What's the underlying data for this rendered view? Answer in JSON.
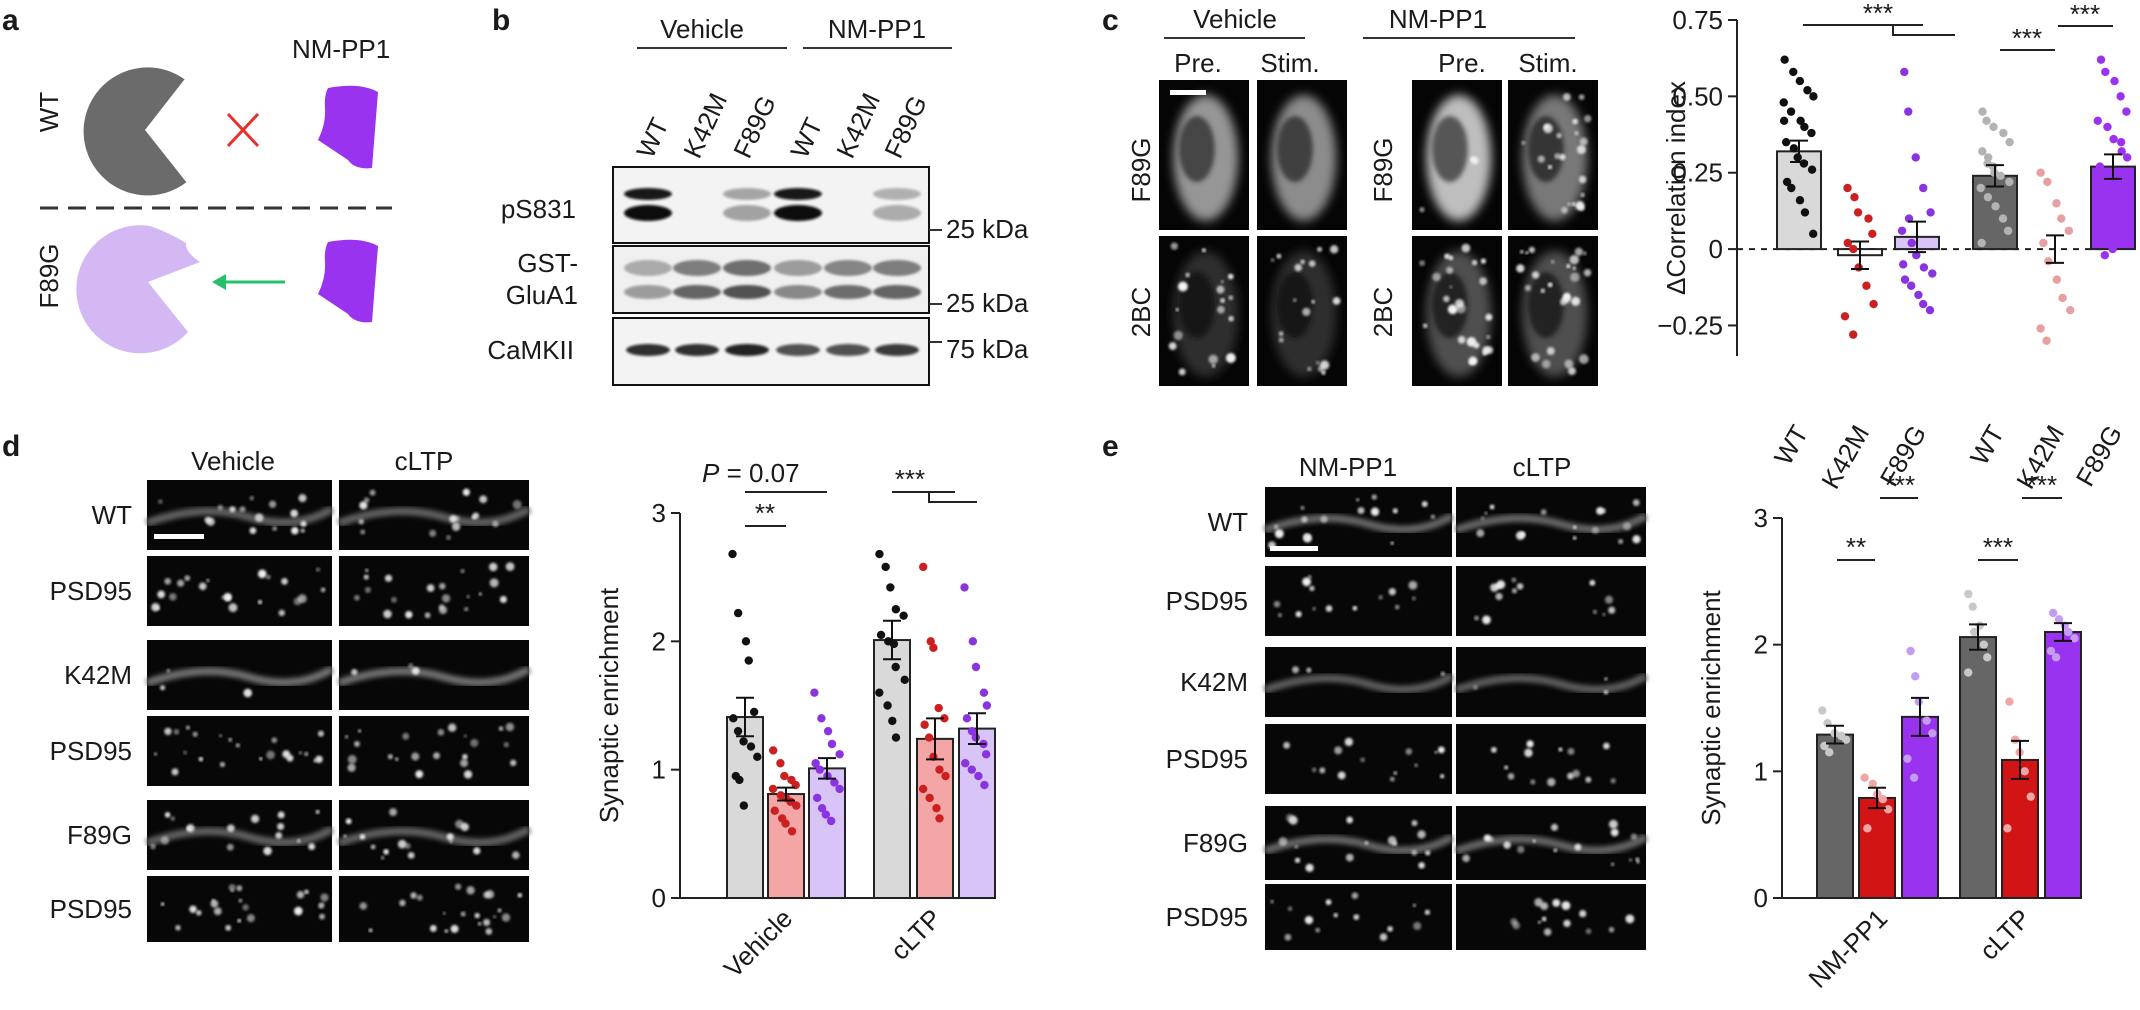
{
  "panels": {
    "a": {
      "label": "a",
      "drug": "NM-PP1",
      "rows": [
        "WT",
        "F89G"
      ],
      "colors": {
        "wt": "#6b6b6b",
        "f89g": "#d4b8f3",
        "drug": "#9a33f0",
        "cross": "#e8312a",
        "arrow": "#27c06a"
      }
    },
    "b": {
      "label": "b",
      "groups": [
        "Vehicle",
        "NM-PP1"
      ],
      "lanes": [
        "WT",
        "K42M",
        "F89G",
        "WT",
        "K42M",
        "F89G"
      ],
      "rows": [
        "pS831",
        "GST-\nGluA1",
        "CaMKII"
      ],
      "row_line1": [
        "pS831",
        "GST-",
        "CaMKII"
      ],
      "row_line2": [
        "",
        "GluA1",
        ""
      ],
      "markers": [
        "25 kDa",
        "25 kDa",
        "75 kDa"
      ]
    },
    "c": {
      "label": "c",
      "groups": [
        "Vehicle",
        "NM-PP1"
      ],
      "cols": [
        "Pre.",
        "Stim.",
        "Pre.",
        "Stim."
      ],
      "rows": [
        "F89G",
        "2BC"
      ]
    },
    "d": {
      "label": "d",
      "cols": [
        "Vehicle",
        "cLTP"
      ],
      "rows": [
        "WT",
        "PSD95",
        "K42M",
        "PSD95",
        "F89G",
        "PSD95"
      ]
    },
    "e": {
      "label": "e",
      "cols": [
        "NM-PP1",
        "cLTP"
      ],
      "rows": [
        "WT",
        "PSD95",
        "K42M",
        "PSD95",
        "F89G",
        "PSD95"
      ]
    }
  },
  "chart_data": [
    {
      "id": "c_chart",
      "type": "bar",
      "ylabel": "ΔCorrelation index",
      "ylim": [
        -0.35,
        0.75
      ],
      "yticks": [
        -0.25,
        0,
        0.25,
        0.5,
        0.75
      ],
      "ytick_labels": [
        "−0.25",
        "0",
        "0.25",
        "0.50",
        "0.75"
      ],
      "categories": [
        "WT",
        "K42M",
        "F89G",
        "WT",
        "K42M",
        "F89G"
      ],
      "groups": [
        "Vehicle",
        "NM-PP1"
      ],
      "values": [
        0.32,
        -0.02,
        0.04,
        0.24,
        0.0,
        0.27
      ],
      "sem": [
        0.035,
        0.045,
        0.05,
        0.035,
        0.045,
        0.04
      ],
      "bar_colors": [
        "#d9d9d9",
        "#ffffff",
        "#d8c4f6",
        "#666666",
        "#ffffff",
        "#9a33f0"
      ],
      "point_colors": [
        "#111111",
        "#cc2020",
        "#8a33e0",
        "#b3b3b3",
        "#e6a0a0",
        "#9a33f0"
      ],
      "points": [
        [
          0.62,
          0.58,
          0.55,
          0.52,
          0.5,
          0.48,
          0.45,
          0.42,
          0.4,
          0.38,
          0.35,
          0.33,
          0.3,
          0.28,
          0.26,
          0.22,
          0.2,
          0.16,
          0.12,
          0.05,
          0.42
        ],
        [
          0.2,
          0.17,
          0.12,
          0.1,
          0.05,
          0.02,
          0.0,
          -0.06,
          -0.12,
          -0.18,
          -0.22,
          -0.28
        ],
        [
          0.58,
          0.45,
          0.3,
          0.2,
          0.12,
          0.06,
          0.02,
          -0.02,
          -0.06,
          -0.08,
          -0.1,
          -0.12,
          -0.15,
          -0.18,
          -0.2,
          -0.05,
          0.1
        ],
        [
          0.45,
          0.42,
          0.4,
          0.38,
          0.35,
          0.32,
          0.3,
          0.27,
          0.24,
          0.22,
          0.2,
          0.17,
          0.14,
          0.1,
          0.06,
          0.02,
          0.28,
          0.25
        ],
        [
          0.25,
          0.22,
          0.15,
          0.1,
          0.06,
          0.02,
          -0.04,
          -0.1,
          -0.16,
          -0.2,
          -0.26,
          -0.3
        ],
        [
          0.62,
          0.58,
          0.55,
          0.5,
          0.45,
          0.42,
          0.4,
          0.36,
          0.32,
          0.3,
          0.27,
          0.24,
          0.2,
          0.16,
          0.12,
          0.08,
          0.04,
          0.0,
          0.35,
          0.22,
          0.1,
          -0.02
        ]
      ],
      "sig": [
        "***",
        "***",
        "***"
      ]
    },
    {
      "id": "d_chart",
      "type": "bar",
      "ylabel": "Synaptic enrichment",
      "ylim": [
        0,
        3
      ],
      "yticks": [
        0,
        1,
        2,
        3
      ],
      "ytick_labels": [
        "0",
        "1",
        "2",
        "3"
      ],
      "categories": [
        "Vehicle",
        "cLTP"
      ],
      "series_colors": [
        "#d9d9d9",
        "#f4a6a6",
        "#d8c4f6"
      ],
      "point_colors": [
        "#111111",
        "#cc1f1f",
        "#8a33e0"
      ],
      "values": [
        [
          1.41,
          0.81,
          1.01
        ],
        [
          2.01,
          1.24,
          1.32
        ]
      ],
      "sem": [
        [
          0.15,
          0.05,
          0.08
        ],
        [
          0.15,
          0.16,
          0.12
        ]
      ],
      "points": [
        [
          [
            2.68,
            2.22,
            2.0,
            1.85,
            1.45,
            1.4,
            1.3,
            1.22,
            1.18,
            1.1,
            0.95,
            0.92,
            0.72
          ],
          [
            1.15,
            1.05,
            0.95,
            0.92,
            0.88,
            0.85,
            0.8,
            0.78,
            0.75,
            0.72,
            0.68,
            0.62,
            0.58,
            0.52
          ],
          [
            1.6,
            1.4,
            1.3,
            1.2,
            1.12,
            1.05,
            1.0,
            0.95,
            0.9,
            0.85,
            0.78,
            0.7,
            0.65,
            0.6
          ]
        ],
        [
          [
            2.68,
            2.58,
            2.42,
            2.25,
            2.2,
            2.05,
            2.0,
            1.98,
            1.8,
            1.7,
            1.6,
            1.5,
            1.38,
            1.25
          ],
          [
            2.58,
            2.0,
            1.95,
            1.48,
            1.4,
            1.35,
            1.25,
            1.1,
            1.0,
            0.95,
            0.85,
            0.78,
            0.7,
            0.62
          ],
          [
            2.42,
            2.0,
            1.8,
            1.6,
            1.5,
            1.4,
            1.3,
            1.25,
            1.2,
            1.12,
            1.05,
            1.0,
            0.95,
            0.88
          ]
        ]
      ],
      "annotation": "P = 0.07",
      "sig": [
        "**",
        "***"
      ]
    },
    {
      "id": "e_chart",
      "type": "bar",
      "ylabel": "Synaptic enrichment",
      "ylim": [
        0,
        3
      ],
      "yticks": [
        0,
        1,
        2,
        3
      ],
      "ytick_labels": [
        "0",
        "1",
        "2",
        "3"
      ],
      "categories": [
        "NM-PP1",
        "cLTP"
      ],
      "series_colors": [
        "#666666",
        "#d21414",
        "#9a33f0"
      ],
      "point_colors": [
        "#c8c8c8",
        "#f0a6a6",
        "#c59cf3"
      ],
      "values": [
        [
          1.29,
          0.79,
          1.43
        ],
        [
          2.06,
          1.09,
          2.1
        ]
      ],
      "sem": [
        [
          0.07,
          0.08,
          0.15
        ],
        [
          0.1,
          0.15,
          0.07
        ]
      ],
      "points": [
        [
          [
            1.48,
            1.38,
            1.3,
            1.28,
            1.25,
            1.2,
            1.15
          ],
          [
            0.95,
            0.9,
            0.82,
            0.78,
            0.7,
            0.55
          ],
          [
            1.95,
            1.75,
            1.55,
            1.4,
            1.3,
            1.1,
            0.95
          ]
        ],
        [
          [
            2.4,
            2.3,
            2.15,
            2.0,
            1.9,
            1.78,
            2.1
          ],
          [
            1.55,
            1.25,
            1.15,
            1.0,
            0.8,
            0.55
          ],
          [
            2.25,
            2.2,
            2.15,
            2.1,
            2.05,
            1.95,
            1.9
          ]
        ]
      ],
      "sig": [
        "**",
        "***",
        "***",
        "***"
      ]
    }
  ]
}
